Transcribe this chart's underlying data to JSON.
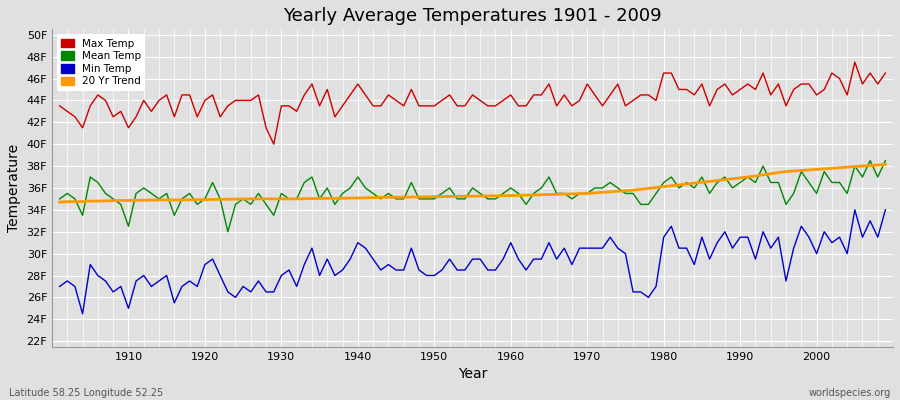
{
  "title": "Yearly Average Temperatures 1901 - 2009",
  "xlabel": "Year",
  "ylabel": "Temperature",
  "subtitle_left": "Latitude 58.25 Longitude 52.25",
  "subtitle_right": "worldspecies.org",
  "years": [
    1901,
    1902,
    1903,
    1904,
    1905,
    1906,
    1907,
    1908,
    1909,
    1910,
    1911,
    1912,
    1913,
    1914,
    1915,
    1916,
    1917,
    1918,
    1919,
    1920,
    1921,
    1922,
    1923,
    1924,
    1925,
    1926,
    1927,
    1928,
    1929,
    1930,
    1931,
    1932,
    1933,
    1934,
    1935,
    1936,
    1937,
    1938,
    1939,
    1940,
    1941,
    1942,
    1943,
    1944,
    1945,
    1946,
    1947,
    1948,
    1949,
    1950,
    1951,
    1952,
    1953,
    1954,
    1955,
    1956,
    1957,
    1958,
    1959,
    1960,
    1961,
    1962,
    1963,
    1964,
    1965,
    1966,
    1967,
    1968,
    1969,
    1970,
    1971,
    1972,
    1973,
    1974,
    1975,
    1976,
    1977,
    1978,
    1979,
    1980,
    1981,
    1982,
    1983,
    1984,
    1985,
    1986,
    1987,
    1988,
    1989,
    1990,
    1991,
    1992,
    1993,
    1994,
    1995,
    1996,
    1997,
    1998,
    1999,
    2000,
    2001,
    2002,
    2003,
    2004,
    2005,
    2006,
    2007,
    2008,
    2009
  ],
  "max_temp": [
    43.5,
    43.0,
    42.5,
    41.5,
    43.5,
    44.5,
    44.0,
    42.5,
    43.0,
    41.5,
    42.5,
    44.0,
    43.0,
    44.0,
    44.5,
    42.5,
    44.5,
    44.5,
    42.5,
    44.0,
    44.5,
    42.5,
    43.5,
    44.0,
    44.0,
    44.0,
    44.5,
    41.5,
    40.0,
    43.5,
    43.5,
    43.0,
    44.5,
    45.5,
    43.5,
    45.0,
    42.5,
    43.5,
    44.5,
    45.5,
    44.5,
    43.5,
    43.5,
    44.5,
    44.0,
    43.5,
    45.0,
    43.5,
    43.5,
    43.5,
    44.0,
    44.5,
    43.5,
    43.5,
    44.5,
    44.0,
    43.5,
    43.5,
    44.0,
    44.5,
    43.5,
    43.5,
    44.5,
    44.5,
    45.5,
    43.5,
    44.5,
    43.5,
    44.0,
    45.5,
    44.5,
    43.5,
    44.5,
    45.5,
    43.5,
    44.0,
    44.5,
    44.5,
    44.0,
    46.5,
    46.5,
    45.0,
    45.0,
    44.5,
    45.5,
    43.5,
    45.0,
    45.5,
    44.5,
    45.0,
    45.5,
    45.0,
    46.5,
    44.5,
    45.5,
    43.5,
    45.0,
    45.5,
    45.5,
    44.5,
    45.0,
    46.5,
    46.0,
    44.5,
    47.5,
    45.5,
    46.5,
    45.5,
    46.5
  ],
  "mean_temp": [
    35.0,
    35.5,
    35.0,
    33.5,
    37.0,
    36.5,
    35.5,
    35.0,
    34.5,
    32.5,
    35.5,
    36.0,
    35.5,
    35.0,
    35.5,
    33.5,
    35.0,
    35.5,
    34.5,
    35.0,
    36.5,
    35.0,
    32.0,
    34.5,
    35.0,
    34.5,
    35.5,
    34.5,
    33.5,
    35.5,
    35.0,
    35.0,
    36.5,
    37.0,
    35.0,
    36.0,
    34.5,
    35.5,
    36.0,
    37.0,
    36.0,
    35.5,
    35.0,
    35.5,
    35.0,
    35.0,
    36.5,
    35.0,
    35.0,
    35.0,
    35.5,
    36.0,
    35.0,
    35.0,
    36.0,
    35.5,
    35.0,
    35.0,
    35.5,
    36.0,
    35.5,
    34.5,
    35.5,
    36.0,
    37.0,
    35.5,
    35.5,
    35.0,
    35.5,
    35.5,
    36.0,
    36.0,
    36.5,
    36.0,
    35.5,
    35.5,
    34.5,
    34.5,
    35.5,
    36.5,
    37.0,
    36.0,
    36.5,
    36.0,
    37.0,
    35.5,
    36.5,
    37.0,
    36.0,
    36.5,
    37.0,
    36.5,
    38.0,
    36.5,
    36.5,
    34.5,
    35.5,
    37.5,
    36.5,
    35.5,
    37.5,
    36.5,
    36.5,
    35.5,
    38.0,
    37.0,
    38.5,
    37.0,
    38.5
  ],
  "min_temp": [
    27.0,
    27.5,
    27.0,
    24.5,
    29.0,
    28.0,
    27.5,
    26.5,
    27.0,
    25.0,
    27.5,
    28.0,
    27.0,
    27.5,
    28.0,
    25.5,
    27.0,
    27.5,
    27.0,
    29.0,
    29.5,
    28.0,
    26.5,
    26.0,
    27.0,
    26.5,
    27.5,
    26.5,
    26.5,
    28.0,
    28.5,
    27.0,
    29.0,
    30.5,
    28.0,
    29.5,
    28.0,
    28.5,
    29.5,
    31.0,
    30.5,
    29.5,
    28.5,
    29.0,
    28.5,
    28.5,
    30.5,
    28.5,
    28.0,
    28.0,
    28.5,
    29.5,
    28.5,
    28.5,
    29.5,
    29.5,
    28.5,
    28.5,
    29.5,
    31.0,
    29.5,
    28.5,
    29.5,
    29.5,
    31.0,
    29.5,
    30.5,
    29.0,
    30.5,
    30.5,
    30.5,
    30.5,
    31.5,
    30.5,
    30.0,
    26.5,
    26.5,
    26.0,
    27.0,
    31.5,
    32.5,
    30.5,
    30.5,
    29.0,
    31.5,
    29.5,
    31.0,
    32.0,
    30.5,
    31.5,
    31.5,
    29.5,
    32.0,
    30.5,
    31.5,
    27.5,
    30.5,
    32.5,
    31.5,
    30.0,
    32.0,
    31.0,
    31.5,
    30.0,
    34.0,
    31.5,
    33.0,
    31.5,
    34.0
  ],
  "trend_x": [
    1901,
    1902,
    1903,
    1904,
    1905,
    1906,
    1907,
    1908,
    1909,
    1910,
    1911,
    1912,
    1913,
    1914,
    1915,
    1916,
    1917,
    1918,
    1919,
    1920,
    1921,
    1922,
    1923,
    1924,
    1925,
    1926,
    1927,
    1928,
    1929,
    1930,
    1931,
    1932,
    1933,
    1934,
    1935,
    1936,
    1937,
    1938,
    1939,
    1940,
    1941,
    1942,
    1943,
    1944,
    1945,
    1946,
    1947,
    1948,
    1949,
    1950,
    1951,
    1952,
    1953,
    1954,
    1955,
    1956,
    1957,
    1958,
    1959,
    1960,
    1961,
    1962,
    1963,
    1964,
    1965,
    1966,
    1967,
    1968,
    1969,
    1970,
    1971,
    1972,
    1973,
    1974,
    1975,
    1976,
    1977,
    1978,
    1979,
    1980,
    1981,
    1982,
    1983,
    1984,
    1985,
    1986,
    1987,
    1988,
    1989,
    1990,
    1991,
    1992,
    1993,
    1994,
    1995,
    1996,
    1997,
    1998,
    1999,
    2000,
    2001,
    2002,
    2003,
    2004,
    2005,
    2006,
    2007,
    2008,
    2009
  ],
  "trend_y": [
    34.7,
    34.75,
    34.75,
    34.75,
    34.8,
    34.8,
    34.82,
    34.84,
    34.85,
    34.86,
    34.87,
    34.88,
    34.89,
    34.9,
    34.91,
    34.9,
    34.91,
    34.92,
    34.93,
    34.94,
    34.95,
    34.96,
    34.97,
    34.98,
    34.99,
    35.0,
    35.0,
    35.0,
    35.0,
    35.0,
    35.0,
    35.0,
    35.02,
    35.03,
    35.04,
    35.05,
    35.05,
    35.06,
    35.07,
    35.08,
    35.1,
    35.12,
    35.14,
    35.15,
    35.15,
    35.16,
    35.17,
    35.18,
    35.19,
    35.2,
    35.21,
    35.22,
    35.23,
    35.24,
    35.25,
    35.26,
    35.27,
    35.28,
    35.29,
    35.3,
    35.32,
    35.34,
    35.36,
    35.38,
    35.4,
    35.42,
    35.44,
    35.46,
    35.48,
    35.5,
    35.55,
    35.6,
    35.65,
    35.7,
    35.75,
    35.8,
    35.88,
    35.96,
    36.04,
    36.12,
    36.2,
    36.28,
    36.36,
    36.44,
    36.52,
    36.6,
    36.68,
    36.76,
    36.84,
    36.92,
    37.0,
    37.1,
    37.2,
    37.3,
    37.4,
    37.5,
    37.55,
    37.6,
    37.65,
    37.7,
    37.75,
    37.8,
    37.85,
    37.9,
    37.95,
    38.0,
    38.05,
    38.1,
    38.15
  ],
  "max_color": "#cc0000",
  "mean_color": "#008800",
  "min_color": "#0000cc",
  "trend_color": "#ff9900",
  "bg_color": "#e0e0e0",
  "plot_bg_color": "#e0e0e0",
  "ytick_labels": [
    "22F",
    "24F",
    "26F",
    "28F",
    "30F",
    "32F",
    "34F",
    "36F",
    "38F",
    "40F",
    "42F",
    "44F",
    "46F",
    "48F",
    "50F"
  ],
  "ytick_values": [
    22,
    24,
    26,
    28,
    30,
    32,
    34,
    36,
    38,
    40,
    42,
    44,
    46,
    48,
    50
  ],
  "ylim": [
    21.5,
    50.5
  ],
  "xlim": [
    1900,
    2010
  ],
  "grid_color": "#ffffff",
  "line_width": 1.0
}
